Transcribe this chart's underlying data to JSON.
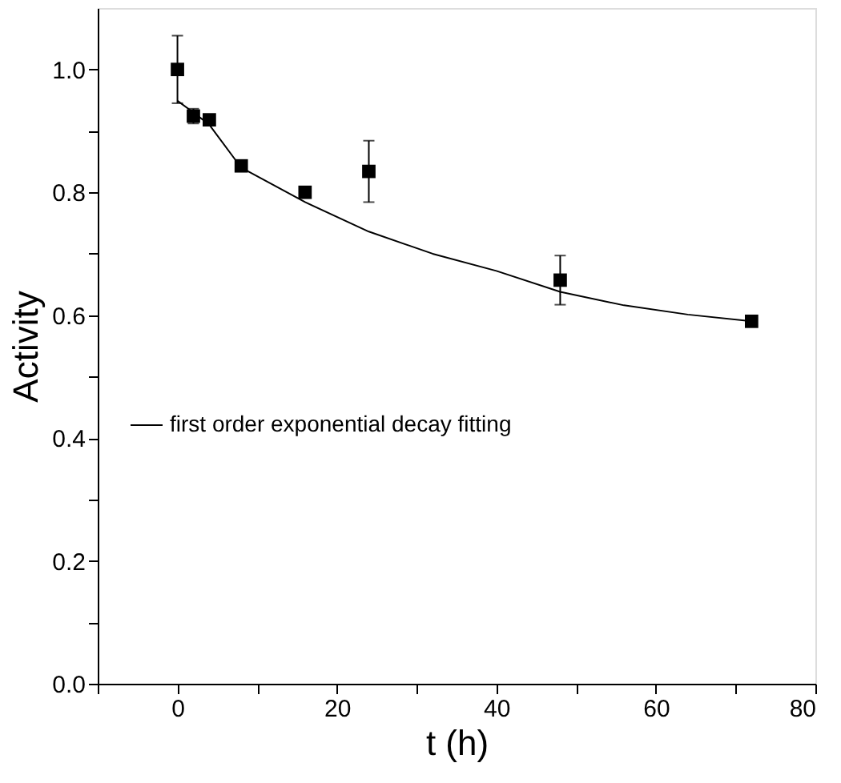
{
  "chart_data": {
    "type": "scatter",
    "xlabel": "t (h)",
    "ylabel": "Activity",
    "xlim": [
      -10,
      80
    ],
    "ylim": [
      0,
      1.1
    ],
    "xticks": [
      {
        "value": -10,
        "label": null
      },
      0,
      {
        "value": 10,
        "label": null
      },
      20,
      {
        "value": 30,
        "label": null
      },
      40,
      {
        "value": 50,
        "label": null
      },
      60,
      {
        "value": 70,
        "label": null
      },
      80
    ],
    "yticks": [
      {
        "value": 0,
        "label": "0.0"
      },
      {
        "value": 0.1,
        "label": null
      },
      0.2,
      {
        "value": 0.3,
        "label": null
      },
      0.4,
      {
        "value": 0.5,
        "label": null
      },
      0.6,
      {
        "value": 0.7,
        "label": null
      },
      0.8,
      {
        "value": 0.9,
        "label": null
      },
      {
        "value": 1,
        "label": "1.0"
      }
    ],
    "grid": false,
    "legend": "left",
    "marker": "square",
    "series": [
      {
        "color": "#000000",
        "x": [
          0,
          2,
          4,
          8,
          16,
          24,
          48,
          72
        ],
        "values": [
          1.0,
          0.924,
          0.918,
          0.843,
          0.8,
          0.834,
          0.657,
          0.59
        ],
        "errors": [
          0.055,
          0.012,
          null,
          null,
          null,
          0.05,
          0.04,
          null
        ]
      },
      {
        "type": "line",
        "name": "first order exponential decay fitting",
        "color": "#000000",
        "marker": "none",
        "line_style": "solid",
        "x": [
          0,
          2,
          4,
          8,
          16,
          24,
          32,
          40,
          48,
          56,
          64,
          72
        ],
        "values": [
          0.949,
          0.93,
          0.91,
          0.84,
          0.784,
          0.736,
          0.7,
          0.672,
          0.638,
          0.616,
          0.601,
          0.59
        ]
      }
    ]
  }
}
